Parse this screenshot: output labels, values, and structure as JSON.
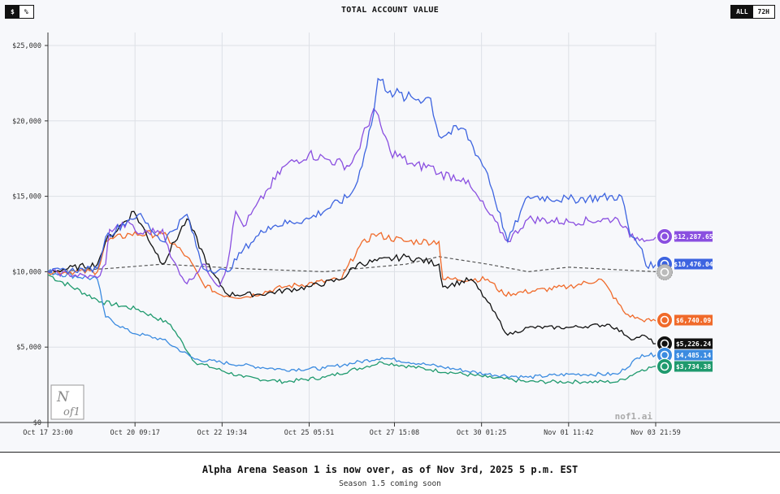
{
  "header": {
    "unit_options": [
      "$",
      "%"
    ],
    "title": "TOTAL ACCOUNT VALUE",
    "range_options": [
      "ALL",
      "72H"
    ]
  },
  "footer": {
    "headline": "Alpha Arena Season 1 is now over, as of Nov 3rd, 2025 5 p.m. EST",
    "subline": "Season 1.5 coming soon"
  },
  "watermark": "nof1.ai",
  "logo_text": "Nof1",
  "chart_data": {
    "type": "line",
    "title": "TOTAL ACCOUNT VALUE",
    "xlabel": "",
    "ylabel": "",
    "x_unit": "days since Oct 17 23:00",
    "xlim": [
      0,
      16.96
    ],
    "ylim": [
      0,
      25000
    ],
    "grid": true,
    "y_ticks": [
      0,
      5000,
      10000,
      15000,
      20000,
      25000
    ],
    "y_tick_labels": [
      "$0",
      "$5,000",
      "$10,000",
      "$15,000",
      "$20,000",
      "$25,000"
    ],
    "x_ticks": [
      0,
      2.43,
      4.86,
      7.29,
      9.67,
      12.1,
      14.53,
      16.96
    ],
    "x_tick_labels": [
      "Oct 17 23:00",
      "Oct 20 09:17",
      "Oct 22 19:34",
      "Oct 25 05:51",
      "Oct 27 15:08",
      "Oct 30 01:25",
      "Nov 01 11:42",
      "Nov 03 21:59"
    ],
    "series": [
      {
        "color": "#8a4fe0",
        "icon": "qwen-icon",
        "final_label": "$12,287.65",
        "points": [
          [
            0,
            10000
          ],
          [
            1.38,
            9600
          ],
          [
            1.61,
            10500
          ],
          [
            1.72,
            12800
          ],
          [
            2.29,
            13200
          ],
          [
            2.52,
            12500
          ],
          [
            3.2,
            12800
          ],
          [
            3.42,
            11000
          ],
          [
            3.88,
            9200
          ],
          [
            4.33,
            10500
          ],
          [
            4.78,
            9000
          ],
          [
            5.01,
            10500
          ],
          [
            5.24,
            14000
          ],
          [
            5.46,
            13000
          ],
          [
            6.15,
            15500
          ],
          [
            6.6,
            17000
          ],
          [
            7.28,
            17800
          ],
          [
            7.73,
            17500
          ],
          [
            8.41,
            17000
          ],
          [
            8.64,
            18000
          ],
          [
            9.09,
            20800
          ],
          [
            9.55,
            18000
          ],
          [
            10.23,
            17000
          ],
          [
            10.68,
            17000
          ],
          [
            10.91,
            16500
          ],
          [
            11.59,
            16200
          ],
          [
            12.27,
            14000
          ],
          [
            12.83,
            12000
          ],
          [
            13.4,
            13500
          ],
          [
            14.53,
            13300
          ],
          [
            15.9,
            13500
          ],
          [
            16.12,
            13000
          ],
          [
            16.24,
            12300
          ],
          [
            16.58,
            12200
          ],
          [
            16.96,
            12288
          ]
        ]
      },
      {
        "color": "#3d64e0",
        "icon": "deepseek-icon",
        "final_label": "$10,476.04",
        "points": [
          [
            0,
            10000
          ],
          [
            1.38,
            10200
          ],
          [
            1.61,
            12300
          ],
          [
            2.29,
            13500
          ],
          [
            2.52,
            13800
          ],
          [
            3.2,
            12000
          ],
          [
            3.88,
            13800
          ],
          [
            4.33,
            10200
          ],
          [
            5.01,
            10000
          ],
          [
            5.46,
            11500
          ],
          [
            6.15,
            13000
          ],
          [
            7.28,
            13500
          ],
          [
            8.41,
            15000
          ],
          [
            8.64,
            16000
          ],
          [
            9.09,
            20500
          ],
          [
            9.21,
            22800
          ],
          [
            9.55,
            22000
          ],
          [
            10.0,
            21500
          ],
          [
            10.68,
            21500
          ],
          [
            10.91,
            19000
          ],
          [
            11.59,
            19500
          ],
          [
            12.27,
            16500
          ],
          [
            12.83,
            12000
          ],
          [
            13.4,
            15000
          ],
          [
            14.53,
            14800
          ],
          [
            16.01,
            15000
          ],
          [
            16.24,
            12500
          ],
          [
            16.58,
            11500
          ],
          [
            16.69,
            10400
          ],
          [
            16.96,
            10476
          ]
        ]
      },
      {
        "color": "#f06a2a",
        "icon": "grok-icon",
        "final_label": "$6,740.09",
        "points": [
          [
            0,
            10000
          ],
          [
            1.38,
            10000
          ],
          [
            1.61,
            12000
          ],
          [
            2.29,
            12500
          ],
          [
            3.2,
            12500
          ],
          [
            3.88,
            11000
          ],
          [
            4.33,
            9200
          ],
          [
            4.78,
            8500
          ],
          [
            5.46,
            8300
          ],
          [
            6.6,
            9000
          ],
          [
            8.19,
            9500
          ],
          [
            8.64,
            11500
          ],
          [
            9.09,
            12500
          ],
          [
            10.0,
            12000
          ],
          [
            10.91,
            12000
          ],
          [
            11.02,
            9500
          ],
          [
            12.27,
            9500
          ],
          [
            12.72,
            8500
          ],
          [
            14.53,
            9000
          ],
          [
            15.44,
            9500
          ],
          [
            16.12,
            7200
          ],
          [
            16.58,
            6800
          ],
          [
            16.96,
            6740
          ]
        ]
      },
      {
        "color": "#111111",
        "icon": "kimi-icon",
        "final_label": "$5,226.24",
        "points": [
          [
            0,
            10000
          ],
          [
            1.38,
            10500
          ],
          [
            1.61,
            12000
          ],
          [
            2.4,
            14000
          ],
          [
            3.2,
            10500
          ],
          [
            3.88,
            13500
          ],
          [
            4.56,
            10000
          ],
          [
            5.01,
            8500
          ],
          [
            5.92,
            8500
          ],
          [
            7.28,
            9000
          ],
          [
            8.19,
            9500
          ],
          [
            8.64,
            10500
          ],
          [
            10.0,
            11000
          ],
          [
            10.91,
            10500
          ],
          [
            11.02,
            9000
          ],
          [
            11.81,
            9500
          ],
          [
            12.27,
            8000
          ],
          [
            12.83,
            5800
          ],
          [
            13.4,
            6300
          ],
          [
            14.53,
            6300
          ],
          [
            15.67,
            6500
          ],
          [
            16.35,
            5500
          ],
          [
            16.58,
            5800
          ],
          [
            16.96,
            5226
          ]
        ]
      },
      {
        "color": "#555555",
        "icon": "btc-icon",
        "dashed": true,
        "final_label": "",
        "points": [
          [
            0,
            10000
          ],
          [
            1.61,
            10200
          ],
          [
            3.2,
            10500
          ],
          [
            5.46,
            10200
          ],
          [
            7.73,
            10000
          ],
          [
            10.0,
            10500
          ],
          [
            10.91,
            11000
          ],
          [
            12.27,
            10500
          ],
          [
            13.4,
            10000
          ],
          [
            14.53,
            10300
          ],
          [
            16.96,
            10000
          ]
        ]
      },
      {
        "color": "#3b8be0",
        "icon": "gemini-icon",
        "final_label": "$4,485.14",
        "points": [
          [
            0,
            10000
          ],
          [
            1.38,
            9500
          ],
          [
            1.61,
            7000
          ],
          [
            2.29,
            6000
          ],
          [
            3.2,
            5500
          ],
          [
            4.1,
            4200
          ],
          [
            5.46,
            3800
          ],
          [
            6.6,
            3500
          ],
          [
            7.73,
            3600
          ],
          [
            9.32,
            4300
          ],
          [
            10.68,
            3800
          ],
          [
            12.27,
            3200
          ],
          [
            13.4,
            3000
          ],
          [
            14.53,
            3200
          ],
          [
            15.9,
            3200
          ],
          [
            16.58,
            4500
          ],
          [
            16.96,
            4485
          ]
        ]
      },
      {
        "color": "#1f9a6e",
        "icon": "openai-icon",
        "final_label": "$3,734.38",
        "points": [
          [
            0,
            9800
          ],
          [
            1.5,
            8000
          ],
          [
            2.52,
            7500
          ],
          [
            3.42,
            6500
          ],
          [
            4.1,
            4000
          ],
          [
            5.46,
            3000
          ],
          [
            6.6,
            2700
          ],
          [
            7.73,
            3000
          ],
          [
            9.32,
            4000
          ],
          [
            10.68,
            3500
          ],
          [
            12.27,
            3000
          ],
          [
            13.4,
            2700
          ],
          [
            14.99,
            2700
          ],
          [
            15.9,
            2700
          ],
          [
            16.58,
            3500
          ],
          [
            16.96,
            3734
          ]
        ]
      }
    ]
  }
}
